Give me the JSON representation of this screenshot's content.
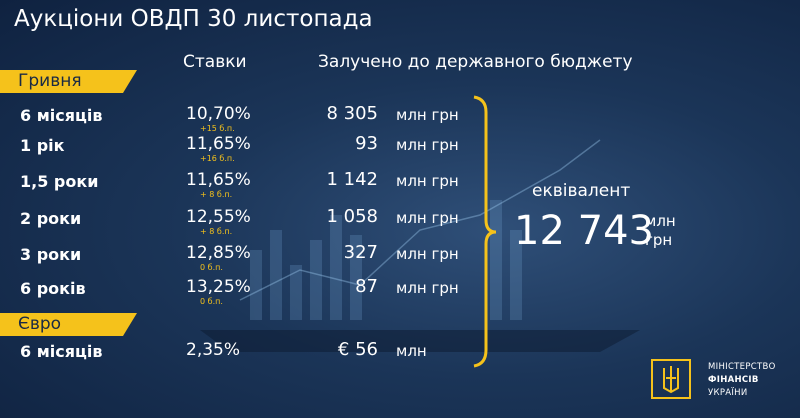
{
  "header": {
    "title": "Аукціони ОВДП  30 листопада",
    "rates": "Ставки",
    "raised": "Залучено до державного бюджету"
  },
  "sections": [
    {
      "label": "Гривня",
      "rows": [
        {
          "term": "6 місяців",
          "rate": "10,70%",
          "change": "+15 б.п.",
          "amount": "8 305",
          "unit": "млн грн"
        },
        {
          "term": "1 рік",
          "rate": "11,65%",
          "change": "+16 б.п.",
          "amount": "93",
          "unit": "млн грн"
        },
        {
          "term": "1,5 роки",
          "rate": "11,65%",
          "change": "+ 8 б.п.",
          "amount": "1 142",
          "unit": "млн грн"
        },
        {
          "term": "2 роки",
          "rate": "12,55%",
          "change": "+ 8 б.п.",
          "amount": "1 058",
          "unit": "млн грн"
        },
        {
          "term": "3 роки",
          "rate": "12,85%",
          "change": "0 б.п.",
          "amount": "327",
          "unit": "млн грн"
        },
        {
          "term": "6 років",
          "rate": "13,25%",
          "change": "0 б.п.",
          "amount": "87",
          "unit": "млн грн"
        }
      ]
    },
    {
      "label": "Євро",
      "rows": [
        {
          "term": "6 місяців",
          "rate": "2,35%",
          "amount": "€ 56",
          "unit": "млн"
        }
      ]
    }
  ],
  "equivalent": {
    "label": "еквівалент",
    "value": "12 743",
    "unit": [
      "млн",
      "грн"
    ]
  },
  "logo": [
    "Міністерство",
    "фінансів",
    "України"
  ]
}
